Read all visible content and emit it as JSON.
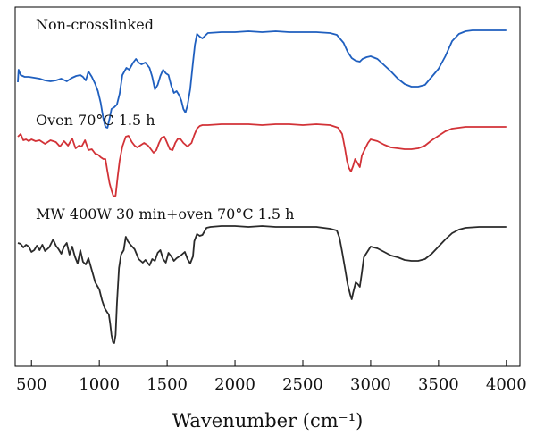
{
  "chart_data": {
    "type": "line",
    "xlabel": "Wavenumber (cm⁻¹)",
    "xlim": [
      380,
      4100
    ],
    "xticks": [
      500,
      1000,
      1500,
      2000,
      2500,
      3000,
      3500,
      4000
    ],
    "grid": false,
    "legend": "none",
    "series": [
      {
        "name": "Non-crosslinked",
        "color": "#1f5fbf",
        "points": [
          [
            400,
            92
          ],
          [
            405,
            78
          ],
          [
            420,
            84
          ],
          [
            450,
            86
          ],
          [
            480,
            86
          ],
          [
            520,
            87
          ],
          [
            560,
            88
          ],
          [
            600,
            90
          ],
          [
            640,
            91
          ],
          [
            680,
            90
          ],
          [
            720,
            88
          ],
          [
            760,
            91
          ],
          [
            800,
            87
          ],
          [
            830,
            85
          ],
          [
            860,
            84
          ],
          [
            880,
            86
          ],
          [
            900,
            90
          ],
          [
            920,
            80
          ],
          [
            945,
            86
          ],
          [
            970,
            94
          ],
          [
            990,
            102
          ],
          [
            1010,
            115
          ],
          [
            1030,
            133
          ],
          [
            1045,
            142
          ],
          [
            1060,
            143
          ],
          [
            1075,
            133
          ],
          [
            1090,
            122
          ],
          [
            1110,
            120
          ],
          [
            1130,
            117
          ],
          [
            1150,
            105
          ],
          [
            1170,
            84
          ],
          [
            1200,
            76
          ],
          [
            1220,
            78
          ],
          [
            1250,
            70
          ],
          [
            1270,
            66
          ],
          [
            1290,
            70
          ],
          [
            1310,
            72
          ],
          [
            1340,
            70
          ],
          [
            1370,
            76
          ],
          [
            1390,
            86
          ],
          [
            1410,
            100
          ],
          [
            1430,
            95
          ],
          [
            1450,
            85
          ],
          [
            1470,
            78
          ],
          [
            1490,
            82
          ],
          [
            1510,
            84
          ],
          [
            1530,
            96
          ],
          [
            1550,
            104
          ],
          [
            1570,
            102
          ],
          [
            1590,
            107
          ],
          [
            1605,
            113
          ],
          [
            1620,
            122
          ],
          [
            1635,
            126
          ],
          [
            1650,
            118
          ],
          [
            1670,
            100
          ],
          [
            1690,
            70
          ],
          [
            1705,
            50
          ],
          [
            1720,
            38
          ],
          [
            1740,
            41
          ],
          [
            1760,
            43
          ],
          [
            1780,
            40
          ],
          [
            1800,
            37
          ],
          [
            1900,
            36
          ],
          [
            2000,
            36
          ],
          [
            2100,
            35
          ],
          [
            2200,
            36
          ],
          [
            2300,
            35
          ],
          [
            2400,
            36
          ],
          [
            2500,
            36
          ],
          [
            2600,
            36
          ],
          [
            2700,
            37
          ],
          [
            2750,
            39
          ],
          [
            2800,
            48
          ],
          [
            2830,
            58
          ],
          [
            2860,
            65
          ],
          [
            2890,
            68
          ],
          [
            2920,
            69
          ],
          [
            2940,
            66
          ],
          [
            2970,
            64
          ],
          [
            3000,
            63
          ],
          [
            3050,
            66
          ],
          [
            3100,
            73
          ],
          [
            3150,
            80
          ],
          [
            3200,
            88
          ],
          [
            3250,
            94
          ],
          [
            3300,
            97
          ],
          [
            3350,
            97
          ],
          [
            3400,
            95
          ],
          [
            3450,
            86
          ],
          [
            3500,
            77
          ],
          [
            3550,
            63
          ],
          [
            3600,
            46
          ],
          [
            3650,
            38
          ],
          [
            3700,
            35
          ],
          [
            3750,
            34
          ],
          [
            3800,
            34
          ],
          [
            3900,
            34
          ],
          [
            4000,
            34
          ]
        ]
      },
      {
        "name": "Oven 70°C 1.5 h",
        "color": "#d23237",
        "points": [
          [
            400,
            153
          ],
          [
            420,
            150
          ],
          [
            440,
            157
          ],
          [
            460,
            156
          ],
          [
            480,
            158
          ],
          [
            500,
            156
          ],
          [
            530,
            158
          ],
          [
            560,
            157
          ],
          [
            600,
            161
          ],
          [
            640,
            157
          ],
          [
            680,
            159
          ],
          [
            710,
            164
          ],
          [
            740,
            158
          ],
          [
            770,
            163
          ],
          [
            800,
            155
          ],
          [
            825,
            166
          ],
          [
            850,
            163
          ],
          [
            870,
            164
          ],
          [
            895,
            157
          ],
          [
            920,
            168
          ],
          [
            945,
            167
          ],
          [
            970,
            172
          ],
          [
            990,
            173
          ],
          [
            1010,
            176
          ],
          [
            1030,
            178
          ],
          [
            1045,
            178
          ],
          [
            1060,
            192
          ],
          [
            1075,
            205
          ],
          [
            1090,
            213
          ],
          [
            1105,
            220
          ],
          [
            1120,
            219
          ],
          [
            1135,
            198
          ],
          [
            1150,
            180
          ],
          [
            1170,
            164
          ],
          [
            1195,
            153
          ],
          [
            1215,
            152
          ],
          [
            1240,
            159
          ],
          [
            1260,
            163
          ],
          [
            1280,
            165
          ],
          [
            1300,
            163
          ],
          [
            1330,
            160
          ],
          [
            1360,
            163
          ],
          [
            1380,
            167
          ],
          [
            1400,
            171
          ],
          [
            1420,
            168
          ],
          [
            1440,
            160
          ],
          [
            1460,
            154
          ],
          [
            1480,
            153
          ],
          [
            1500,
            160
          ],
          [
            1520,
            167
          ],
          [
            1540,
            168
          ],
          [
            1560,
            160
          ],
          [
            1580,
            155
          ],
          [
            1600,
            156
          ],
          [
            1620,
            160
          ],
          [
            1650,
            164
          ],
          [
            1680,
            160
          ],
          [
            1700,
            151
          ],
          [
            1720,
            144
          ],
          [
            1740,
            141
          ],
          [
            1760,
            140
          ],
          [
            1800,
            140
          ],
          [
            1900,
            139
          ],
          [
            2000,
            139
          ],
          [
            2100,
            139
          ],
          [
            2200,
            140
          ],
          [
            2300,
            139
          ],
          [
            2400,
            139
          ],
          [
            2500,
            140
          ],
          [
            2600,
            139
          ],
          [
            2700,
            140
          ],
          [
            2760,
            143
          ],
          [
            2790,
            150
          ],
          [
            2810,
            166
          ],
          [
            2825,
            180
          ],
          [
            2840,
            188
          ],
          [
            2855,
            192
          ],
          [
            2870,
            186
          ],
          [
            2885,
            178
          ],
          [
            2905,
            183
          ],
          [
            2920,
            187
          ],
          [
            2935,
            174
          ],
          [
            2960,
            166
          ],
          [
            2980,
            160
          ],
          [
            3000,
            156
          ],
          [
            3050,
            158
          ],
          [
            3100,
            162
          ],
          [
            3150,
            165
          ],
          [
            3200,
            166
          ],
          [
            3250,
            167
          ],
          [
            3300,
            167
          ],
          [
            3350,
            166
          ],
          [
            3400,
            163
          ],
          [
            3450,
            157
          ],
          [
            3500,
            152
          ],
          [
            3550,
            147
          ],
          [
            3600,
            144
          ],
          [
            3650,
            143
          ],
          [
            3700,
            142
          ],
          [
            3800,
            142
          ],
          [
            3900,
            142
          ],
          [
            4000,
            142
          ]
        ]
      },
      {
        "name": "MW 400W 30 min+oven 70°C 1.5 h",
        "color": "#2a2a2a",
        "points": [
          [
            400,
            272
          ],
          [
            420,
            273
          ],
          [
            440,
            277
          ],
          [
            460,
            274
          ],
          [
            480,
            276
          ],
          [
            500,
            282
          ],
          [
            520,
            280
          ],
          [
            540,
            275
          ],
          [
            560,
            280
          ],
          [
            580,
            274
          ],
          [
            600,
            281
          ],
          [
            630,
            277
          ],
          [
            660,
            268
          ],
          [
            680,
            275
          ],
          [
            700,
            279
          ],
          [
            720,
            284
          ],
          [
            740,
            276
          ],
          [
            760,
            272
          ],
          [
            780,
            285
          ],
          [
            800,
            276
          ],
          [
            820,
            287
          ],
          [
            840,
            295
          ],
          [
            860,
            280
          ],
          [
            880,
            293
          ],
          [
            900,
            296
          ],
          [
            920,
            289
          ],
          [
            940,
            300
          ],
          [
            970,
            316
          ],
          [
            1000,
            324
          ],
          [
            1020,
            336
          ],
          [
            1040,
            345
          ],
          [
            1060,
            350
          ],
          [
            1070,
            352
          ],
          [
            1080,
            362
          ],
          [
            1090,
            375
          ],
          [
            1100,
            383
          ],
          [
            1110,
            384
          ],
          [
            1120,
            375
          ],
          [
            1130,
            340
          ],
          [
            1145,
            300
          ],
          [
            1160,
            285
          ],
          [
            1180,
            280
          ],
          [
            1195,
            265
          ],
          [
            1210,
            270
          ],
          [
            1230,
            274
          ],
          [
            1260,
            279
          ],
          [
            1290,
            290
          ],
          [
            1320,
            294
          ],
          [
            1340,
            291
          ],
          [
            1370,
            297
          ],
          [
            1390,
            290
          ],
          [
            1410,
            292
          ],
          [
            1430,
            283
          ],
          [
            1450,
            280
          ],
          [
            1470,
            290
          ],
          [
            1490,
            294
          ],
          [
            1510,
            283
          ],
          [
            1530,
            287
          ],
          [
            1550,
            292
          ],
          [
            1570,
            289
          ],
          [
            1600,
            286
          ],
          [
            1630,
            282
          ],
          [
            1650,
            290
          ],
          [
            1670,
            295
          ],
          [
            1690,
            287
          ],
          [
            1700,
            270
          ],
          [
            1720,
            262
          ],
          [
            1740,
            264
          ],
          [
            1760,
            263
          ],
          [
            1790,
            255
          ],
          [
            1820,
            254
          ],
          [
            1900,
            253
          ],
          [
            2000,
            253
          ],
          [
            2100,
            254
          ],
          [
            2200,
            253
          ],
          [
            2300,
            254
          ],
          [
            2400,
            254
          ],
          [
            2500,
            254
          ],
          [
            2600,
            254
          ],
          [
            2700,
            256
          ],
          [
            2750,
            258
          ],
          [
            2770,
            266
          ],
          [
            2790,
            282
          ],
          [
            2810,
            300
          ],
          [
            2830,
            318
          ],
          [
            2850,
            330
          ],
          [
            2860,
            335
          ],
          [
            2870,
            328
          ],
          [
            2890,
            316
          ],
          [
            2905,
            318
          ],
          [
            2920,
            321
          ],
          [
            2935,
            305
          ],
          [
            2950,
            288
          ],
          [
            2975,
            282
          ],
          [
            3000,
            276
          ],
          [
            3050,
            278
          ],
          [
            3100,
            282
          ],
          [
            3150,
            286
          ],
          [
            3200,
            288
          ],
          [
            3250,
            291
          ],
          [
            3300,
            292
          ],
          [
            3350,
            292
          ],
          [
            3400,
            290
          ],
          [
            3450,
            284
          ],
          [
            3500,
            276
          ],
          [
            3550,
            268
          ],
          [
            3600,
            261
          ],
          [
            3650,
            257
          ],
          [
            3700,
            255
          ],
          [
            3800,
            254
          ],
          [
            3900,
            254
          ],
          [
            4000,
            254
          ]
        ]
      }
    ]
  }
}
